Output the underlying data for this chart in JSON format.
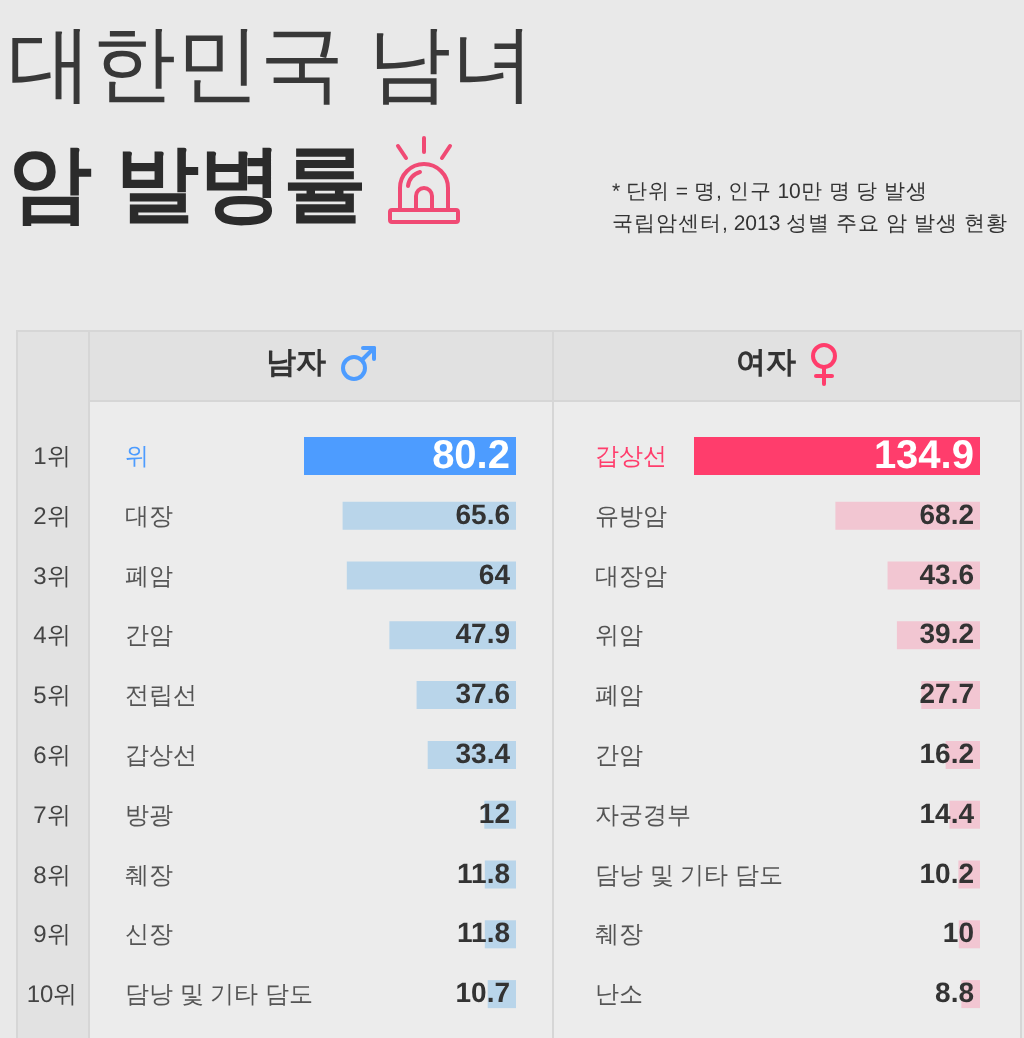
{
  "chart_data": [
    {
      "type": "other",
      "title": "대한민국 남녀",
      "subtitle": "암 발병률",
      "annotations": [
        "* 단위 = 명, 인구 10만 명 당 발생",
        "국립암센터, 2013 성별 주요 암 발생 현황"
      ]
    },
    {
      "type": "bar",
      "orientation": "horizontal",
      "title": "남자",
      "categories": [
        "위",
        "대장",
        "폐암",
        "간암",
        "전립선",
        "갑상선",
        "방광",
        "췌장",
        "신장",
        "담낭 및 기타 담도"
      ],
      "values": [
        80.2,
        65.6,
        64,
        47.9,
        37.6,
        33.4,
        12,
        11.8,
        11.8,
        10.7
      ],
      "colors": [
        "#4d9cff",
        "#b9d5ea",
        "#b9d5ea",
        "#b9d5ea",
        "#b9d5ea",
        "#b9d5ea",
        "#b9d5ea",
        "#b9d5ea",
        "#b9d5ea",
        "#b9d5ea"
      ],
      "data_labels": true,
      "annotations": [
        "1위",
        "2위",
        "3위",
        "4위",
        "5위",
        "6위",
        "7위",
        "8위",
        "9위",
        "10위"
      ]
    },
    {
      "type": "bar",
      "orientation": "horizontal",
      "title": "여자",
      "categories": [
        "갑상선",
        "유방암",
        "대장암",
        "위암",
        "폐암",
        "간암",
        "자궁경부",
        "담낭 및 기타 담도",
        "췌장",
        "난소"
      ],
      "values": [
        134.9,
        68.2,
        43.6,
        39.2,
        27.7,
        16.2,
        14.4,
        10.2,
        10,
        8.8
      ],
      "colors": [
        "#ff3d6c",
        "#f2c6d2",
        "#f2c6d2",
        "#f2c6d2",
        "#f2c6d2",
        "#f2c6d2",
        "#f2c6d2",
        "#f2c6d2",
        "#f2c6d2",
        "#f2c6d2"
      ],
      "data_labels": true
    }
  ]
}
